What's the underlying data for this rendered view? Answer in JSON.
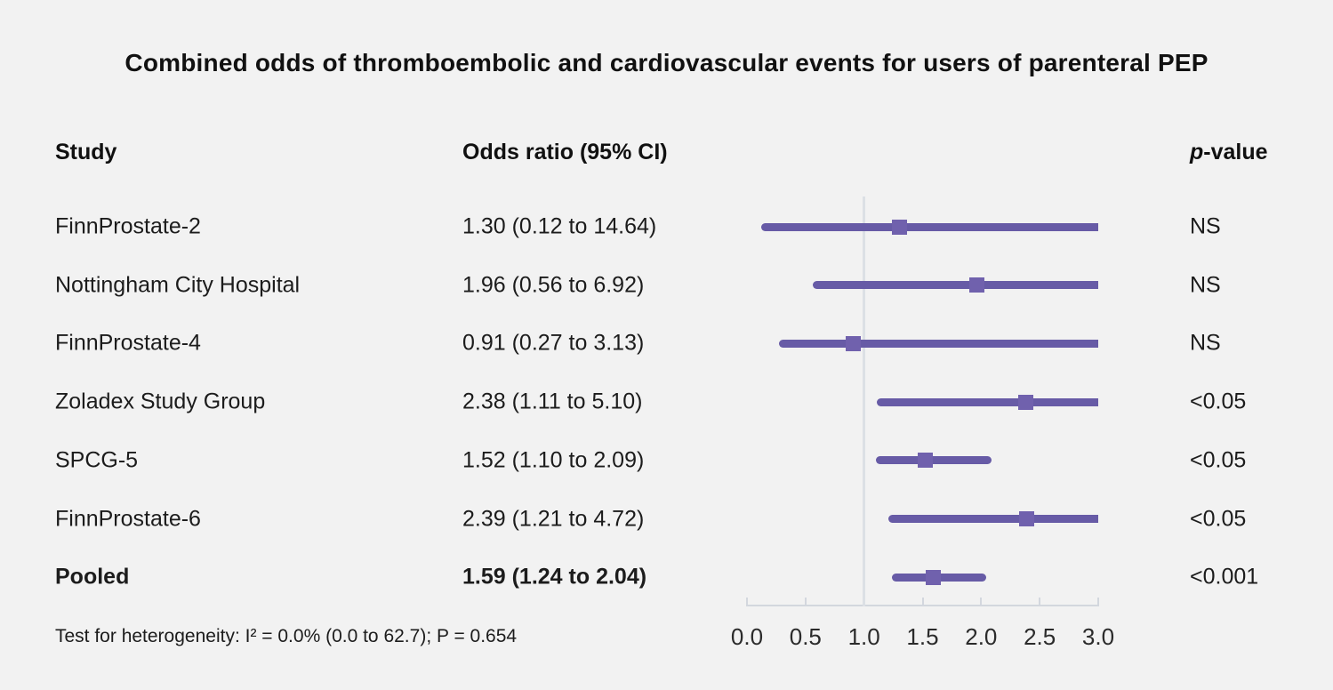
{
  "title": "Combined odds of thromboembolic and cardiovascular events for users of parenteral PEP",
  "columns": {
    "study": "Study",
    "odds_ratio": "Odds ratio (95% CI)",
    "p_italic": "p",
    "p_rest": "-value"
  },
  "footer": "Test for heterogeneity: I² = 0.0% (0.0 to 62.7); P = 0.654",
  "colors": {
    "background": "#f2f2f2",
    "ci_line": "#675ba6",
    "marker": "#7061ad",
    "reference_line": "#dce0e5",
    "axis": "#d3d7de",
    "text": "#1c1c1c"
  },
  "chart_data": {
    "type": "forest",
    "title": "Combined odds of thromboembolic and cardiovascular events for users of parenteral PEP",
    "xlim": [
      0.0,
      3.0
    ],
    "x_ticks": [
      "0.0",
      "0.5",
      "1.0",
      "1.5",
      "2.0",
      "2.5",
      "3.0"
    ],
    "reference_line": 1.0,
    "grid": false,
    "rows": [
      {
        "study": "FinnProstate-2",
        "or": 1.3,
        "ci_low": 0.12,
        "ci_high": 14.64,
        "or_label": "1.30 (0.12 to 14.64)",
        "p": "NS",
        "bold": false
      },
      {
        "study": "Nottingham City Hospital",
        "or": 1.96,
        "ci_low": 0.56,
        "ci_high": 6.92,
        "or_label": "1.96 (0.56 to 6.92)",
        "p": "NS",
        "bold": false
      },
      {
        "study": "FinnProstate-4",
        "or": 0.91,
        "ci_low": 0.27,
        "ci_high": 3.13,
        "or_label": "0.91 (0.27 to 3.13)",
        "p": "NS",
        "bold": false
      },
      {
        "study": "Zoladex Study Group",
        "or": 2.38,
        "ci_low": 1.11,
        "ci_high": 5.1,
        "or_label": "2.38 (1.11 to 5.10)",
        "p": "<0.05",
        "bold": false
      },
      {
        "study": "SPCG-5",
        "or": 1.52,
        "ci_low": 1.1,
        "ci_high": 2.09,
        "or_label": "1.52 (1.10 to 2.09)",
        "p": "<0.05",
        "bold": false
      },
      {
        "study": "FinnProstate-6",
        "or": 2.39,
        "ci_low": 1.21,
        "ci_high": 4.72,
        "or_label": "2.39 (1.21 to 4.72)",
        "p": "<0.05",
        "bold": false
      },
      {
        "study": "Pooled",
        "or": 1.59,
        "ci_low": 1.24,
        "ci_high": 2.04,
        "or_label": "1.59 (1.24 to 2.04)",
        "p": "<0.001",
        "bold": true
      }
    ]
  }
}
